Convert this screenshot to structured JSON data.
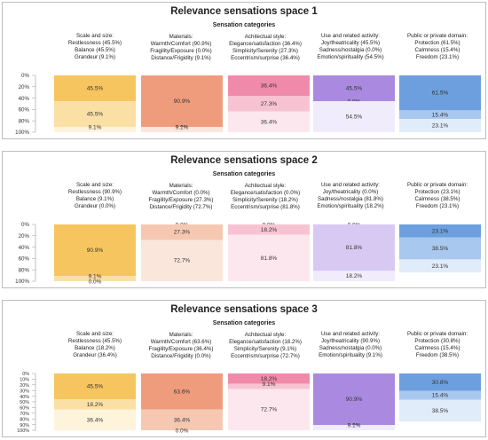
{
  "palettes": [
    [
      "#f7c55f",
      "#fbe0a6",
      "#fef4dc"
    ],
    [
      "#ef9c7d",
      "#f6c8b2",
      "#fbe6dc"
    ],
    [
      "#ef8aab",
      "#f7c3d3",
      "#fde7ee"
    ],
    [
      "#a98ae0",
      "#d8c9f3",
      "#f1ecfb"
    ],
    [
      "#6d9fde",
      "#a9c8ef",
      "#e1ecfa"
    ]
  ],
  "y_ticks": [
    "0%",
    "20%",
    "40%",
    "60%",
    "80%",
    "100%"
  ],
  "y_ticks_fine": [
    "0%",
    "10%",
    "20%",
    "30%",
    "40%",
    "50%",
    "60%",
    "70%",
    "80%",
    "90%",
    "100%"
  ],
  "chart_data": [
    {
      "type": "bar",
      "stacked": true,
      "title": "Relevance sensations space 1",
      "subtitle": "Sensation categories",
      "ylim": [
        0,
        100
      ],
      "categories": [
        {
          "name": "Scale and size:",
          "segments": [
            {
              "label": "Restlessness",
              "value": 45.5
            },
            {
              "label": "Balance",
              "value": 45.5
            },
            {
              "label": "Grandeur",
              "value": 9.1
            }
          ]
        },
        {
          "name": "Materials:",
          "segments": [
            {
              "label": "Warmth/Comfort",
              "value": 90.9
            },
            {
              "label": "Fragility/Exposure",
              "value": 0.0
            },
            {
              "label": "Distance/Frigidity",
              "value": 9.1
            }
          ]
        },
        {
          "name": "Achitectual style:",
          "segments": [
            {
              "label": "Elegance/satisfaction",
              "value": 36.4
            },
            {
              "label": "Simplicity/Serenity",
              "value": 27.3
            },
            {
              "label": "Eccentrism/surprise",
              "value": 36.4
            }
          ]
        },
        {
          "name": "Use and related activity:",
          "segments": [
            {
              "label": "Joy/theatricality",
              "value": 45.5
            },
            {
              "label": "Sadness/nostalgia",
              "value": 0.0
            },
            {
              "label": "Emotion/spirituality",
              "value": 54.5
            }
          ]
        },
        {
          "name": "Public or private domain:",
          "segments": [
            {
              "label": "Protection",
              "value": 61.5
            },
            {
              "label": "Calmness",
              "value": 15.4
            },
            {
              "label": "Freedom",
              "value": 23.1
            }
          ]
        }
      ]
    },
    {
      "type": "bar",
      "stacked": true,
      "title": "Relevance sensations space 2",
      "subtitle": "Sensation categories",
      "ylim": [
        0,
        100
      ],
      "categories": [
        {
          "name": "Scale and size:",
          "segments": [
            {
              "label": "Restlessness",
              "value": 90.9
            },
            {
              "label": "Balance",
              "value": 9.1
            },
            {
              "label": "Grandeur",
              "value": 0.0
            }
          ]
        },
        {
          "name": "Materials:",
          "segments": [
            {
              "label": "Warmth/Comfort",
              "value": 0.0
            },
            {
              "label": "Fragility/Exposure",
              "value": 27.3
            },
            {
              "label": "Distance/Frigidity",
              "value": 72.7
            }
          ]
        },
        {
          "name": "Achitectual style:",
          "segments": [
            {
              "label": "Elegance/satisfaction",
              "value": 0.0
            },
            {
              "label": "Simplicity/Serenity",
              "value": 18.2
            },
            {
              "label": "Eccentrism/surprise",
              "value": 81.8
            }
          ]
        },
        {
          "name": "Use and related activity:",
          "segments": [
            {
              "label": "Joy/theatricality",
              "value": 0.0
            },
            {
              "label": "Sadness/nostalgia",
              "value": 81.8
            },
            {
              "label": "Emotion/spirituality",
              "value": 18.2
            }
          ]
        },
        {
          "name": "Public or private domain:",
          "segments": [
            {
              "label": "Protection",
              "value": 23.1
            },
            {
              "label": "Calmness",
              "value": 38.5
            },
            {
              "label": "Freedom",
              "value": 23.1
            }
          ]
        }
      ]
    },
    {
      "type": "bar",
      "stacked": true,
      "title": "Relevance sensations space 3",
      "subtitle": "Sensation categories",
      "ylim": [
        0,
        100
      ],
      "categories": [
        {
          "name": "Scale and size:",
          "segments": [
            {
              "label": "Restlessness",
              "value": 45.5
            },
            {
              "label": "Balance",
              "value": 18.2
            },
            {
              "label": "Grandeur",
              "value": 36.4
            }
          ]
        },
        {
          "name": "Materials:",
          "segments": [
            {
              "label": "Warmth/Comfort",
              "value": 63.6
            },
            {
              "label": "Fragility/Exposure",
              "value": 36.4
            },
            {
              "label": "Distance/Frigidity",
              "value": 0.0
            }
          ]
        },
        {
          "name": "Achitectual style:",
          "segments": [
            {
              "label": "Elegance/satisfaction",
              "value": 18.2
            },
            {
              "label": "Simplicity/Serenity",
              "value": 9.1
            },
            {
              "label": "Eccentrism/surprise",
              "value": 72.7
            }
          ]
        },
        {
          "name": "Use and related activity:",
          "segments": [
            {
              "label": "Joy/theatricality",
              "value": 90.9
            },
            {
              "label": "Sadness/nostalgia",
              "value": 0.0
            },
            {
              "label": "Emotion/spirituality",
              "value": 9.1
            }
          ]
        },
        {
          "name": "Public or private domain:",
          "segments": [
            {
              "label": "Protection",
              "value": 30.8
            },
            {
              "label": "Calmness",
              "value": 15.4
            },
            {
              "label": "Freedom",
              "value": 38.5
            }
          ]
        }
      ]
    }
  ]
}
